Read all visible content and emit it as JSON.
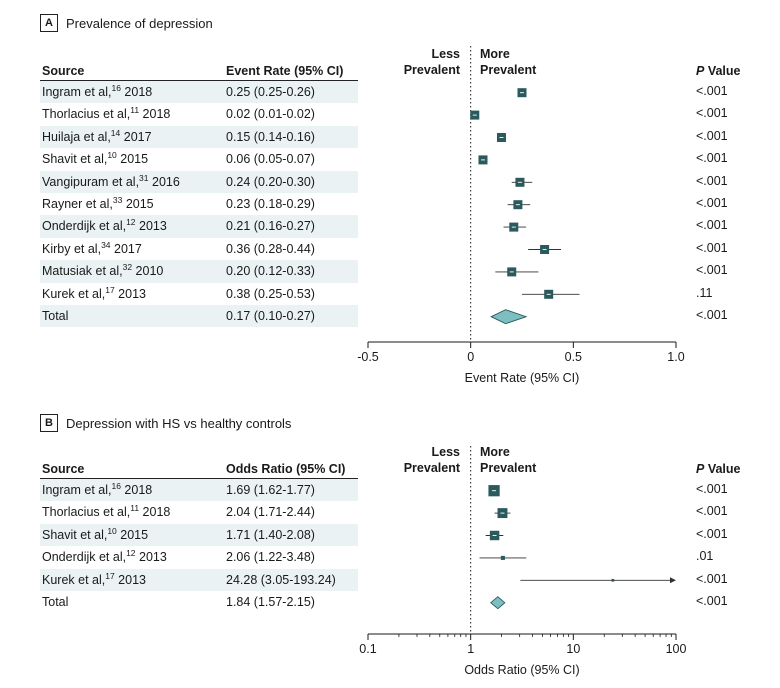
{
  "chart_data": [
    {
      "type": "forest",
      "panel_letter": "A",
      "title": "Prevalence of depression",
      "columns": {
        "source": "Source",
        "estimate": "Event Rate (95% CI)",
        "p": "P",
        "p_suffix": " Value"
      },
      "direction_labels": {
        "left": [
          "Less",
          "Prevalent"
        ],
        "right": [
          "More",
          "Prevalent"
        ]
      },
      "xlabel": "Event Rate (95% CI)",
      "x_scale": "linear",
      "xlim": [
        -0.5,
        1.0
      ],
      "ticks": [
        {
          "value": -0.5,
          "label": "-0.5"
        },
        {
          "value": 0,
          "label": "0"
        },
        {
          "value": 0.5,
          "label": "0.5"
        },
        {
          "value": 1.0,
          "label": "1.0"
        }
      ],
      "minor_ticks": [],
      "reference_line": 0,
      "rows": [
        {
          "author": "Ingram et al,",
          "ref": "16",
          "year": " 2018",
          "est_text": "0.25 (0.25-0.26)",
          "est": 0.25,
          "lo": 0.25,
          "hi": 0.26,
          "p": "<.001",
          "weight": 1.0
        },
        {
          "author": "Thorlacius et al,",
          "ref": "11",
          "year": " 2018",
          "est_text": "0.02 (0.01-0.02)",
          "est": 0.02,
          "lo": 0.01,
          "hi": 0.02,
          "p": "<.001",
          "weight": 1.0
        },
        {
          "author": "Huilaja et al,",
          "ref": "14",
          "year": " 2017",
          "est_text": "0.15 (0.14-0.16)",
          "est": 0.15,
          "lo": 0.14,
          "hi": 0.16,
          "p": "<.001",
          "weight": 1.0
        },
        {
          "author": "Shavit et al,",
          "ref": "10",
          "year": " 2015",
          "est_text": "0.06 (0.05-0.07)",
          "est": 0.06,
          "lo": 0.05,
          "hi": 0.07,
          "p": "<.001",
          "weight": 1.0
        },
        {
          "author": "Vangipuram et al,",
          "ref": "31",
          "year": " 2016",
          "est_text": "0.24 (0.20-0.30)",
          "est": 0.24,
          "lo": 0.2,
          "hi": 0.3,
          "p": "<.001",
          "weight": 1.0
        },
        {
          "author": "Rayner et al,",
          "ref": "33",
          "year": " 2015",
          "est_text": "0.23 (0.18-0.29)",
          "est": 0.23,
          "lo": 0.18,
          "hi": 0.29,
          "p": "<.001",
          "weight": 1.0
        },
        {
          "author": "Onderdijk et al,",
          "ref": "12",
          "year": " 2013",
          "est_text": "0.21 (0.16-0.27)",
          "est": 0.21,
          "lo": 0.16,
          "hi": 0.27,
          "p": "<.001",
          "weight": 1.0
        },
        {
          "author": "Kirby et al,",
          "ref": "34",
          "year": " 2017",
          "est_text": "0.36 (0.28-0.44)",
          "est": 0.36,
          "lo": 0.28,
          "hi": 0.44,
          "p": "<.001",
          "weight": 1.0
        },
        {
          "author": "Matusiak et al,",
          "ref": "32",
          "year": " 2010",
          "est_text": "0.20 (0.12-0.33)",
          "est": 0.2,
          "lo": 0.12,
          "hi": 0.33,
          "p": "<.001",
          "weight": 1.0
        },
        {
          "author": "Kurek et al,",
          "ref": "17",
          "year": " 2013",
          "est_text": "0.38 (0.25-0.53)",
          "est": 0.38,
          "lo": 0.25,
          "hi": 0.53,
          "p": ".11",
          "weight": 1.0
        }
      ],
      "total": {
        "label": "Total",
        "est_text": "0.17 (0.10-0.27)",
        "est": 0.17,
        "lo": 0.1,
        "hi": 0.27,
        "p": "<.001"
      }
    },
    {
      "type": "forest",
      "panel_letter": "B",
      "title": "Depression with HS vs healthy controls",
      "columns": {
        "source": "Source",
        "estimate": "Odds Ratio (95% CI)",
        "p": "P",
        "p_suffix": " Value"
      },
      "direction_labels": {
        "left": [
          "Less",
          "Prevalent"
        ],
        "right": [
          "More",
          "Prevalent"
        ]
      },
      "xlabel": "Odds Ratio (95% CI)",
      "x_scale": "log",
      "xlim": [
        0.1,
        100
      ],
      "ticks": [
        {
          "value": 0.1,
          "label": "0.1"
        },
        {
          "value": 1,
          "label": "1"
        },
        {
          "value": 10,
          "label": "10"
        },
        {
          "value": 100,
          "label": "100"
        }
      ],
      "minor_ticks": [
        0.2,
        0.3,
        0.4,
        0.5,
        0.6,
        0.7,
        0.8,
        0.9,
        2,
        3,
        4,
        5,
        6,
        7,
        8,
        9,
        20,
        30,
        40,
        50,
        60,
        70,
        80,
        90
      ],
      "reference_line": 1,
      "rows": [
        {
          "author": "Ingram et al,",
          "ref": "16",
          "year": " 2018",
          "est_text": "1.69 (1.62-1.77)",
          "est": 1.69,
          "lo": 1.62,
          "hi": 1.77,
          "p": "<.001",
          "weight": 1.25
        },
        {
          "author": "Thorlacius et al,",
          "ref": "11",
          "year": " 2018",
          "est_text": "2.04 (1.71-2.44)",
          "est": 2.04,
          "lo": 1.71,
          "hi": 2.44,
          "p": "<.001",
          "weight": 1.1
        },
        {
          "author": "Shavit et al,",
          "ref": "10",
          "year": " 2015",
          "est_text": "1.71 (1.40-2.08)",
          "est": 1.71,
          "lo": 1.4,
          "hi": 2.08,
          "p": "<.001",
          "weight": 1.05
        },
        {
          "author": "Onderdijk et al,",
          "ref": "12",
          "year": " 2013",
          "est_text": "2.06 (1.22-3.48)",
          "est": 2.06,
          "lo": 1.22,
          "hi": 3.48,
          "p": ".01",
          "weight": 0.45
        },
        {
          "author": "Kurek et al,",
          "ref": "17",
          "year": " 2013",
          "est_text": "24.28 (3.05-193.24)",
          "est": 24.28,
          "lo": 3.05,
          "hi": 193.24,
          "p": "<.001",
          "weight": 0.3,
          "arrow_right": true
        }
      ],
      "total": {
        "label": "Total",
        "est_text": "1.84 (1.57-2.15)",
        "est": 1.84,
        "lo": 1.57,
        "hi": 2.15,
        "p": "<.001"
      }
    }
  ],
  "colors": {
    "marker": "#2b5a5d",
    "diamond_fill": "#7dbec0",
    "diamond_stroke": "#2b5a5d",
    "row_shade": "#eaf2f3",
    "axis": "#1a1a1a"
  }
}
